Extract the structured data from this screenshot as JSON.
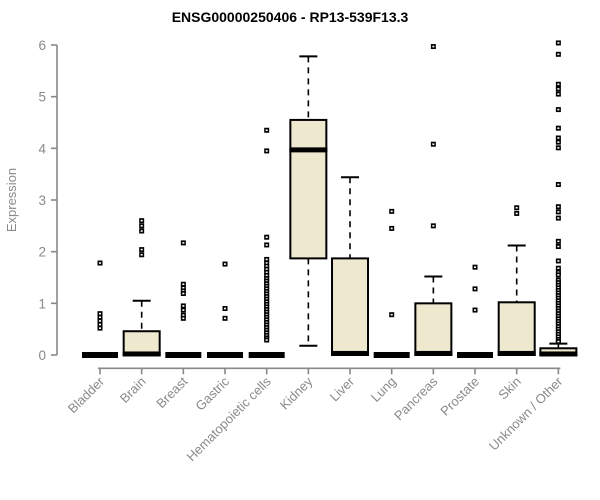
{
  "chart_data": {
    "type": "boxplot",
    "title": "ENSG00000250406 - RP13-539F13.3",
    "ylabel": "Expression",
    "xlabel": "",
    "ylim": [
      0,
      6
    ],
    "yticks": [
      0,
      1,
      2,
      3,
      4,
      5,
      6
    ],
    "grid": false,
    "legend": "none",
    "colors": {
      "box_fill": "#ede8ce",
      "box_stroke": "#000000",
      "median": "#000000",
      "whisker": "#000000",
      "outlier": "#000000",
      "axis": "#888888",
      "tick_label": "#8a8a8a",
      "title": "#000000",
      "background": "#ffffff"
    },
    "categories": [
      "Bladder",
      "Brain",
      "Breast",
      "Gastric",
      "Hematopoietic cells",
      "Kidney",
      "Liver",
      "Lung",
      "Pancreas",
      "Prostate",
      "Skin",
      "Unknown / Other"
    ],
    "series": [
      {
        "name": "Bladder",
        "q1": 0,
        "median": 0,
        "q3": 0,
        "whisker_low": 0,
        "whisker_high": 0,
        "outliers": [
          1.78,
          0.8,
          0.73,
          0.66,
          0.59,
          0.52
        ]
      },
      {
        "name": "Brain",
        "q1": 0,
        "median": 0.02,
        "q3": 0.46,
        "whisker_low": 0,
        "whisker_high": 1.05,
        "outliers": [
          2.6,
          2.5,
          2.4,
          2.04,
          1.94
        ]
      },
      {
        "name": "Breast",
        "q1": 0,
        "median": 0,
        "q3": 0,
        "whisker_low": 0,
        "whisker_high": 0,
        "outliers": [
          2.17,
          1.37,
          1.3,
          1.24,
          1.19,
          0.95,
          0.87,
          0.77,
          0.71
        ]
      },
      {
        "name": "Gastric",
        "q1": 0,
        "median": 0,
        "q3": 0,
        "whisker_low": 0,
        "whisker_high": 0,
        "outliers": [
          1.76,
          0.9,
          0.71
        ]
      },
      {
        "name": "Hematopoietic cells",
        "q1": 0,
        "median": 0,
        "q3": 0,
        "whisker_low": 0,
        "whisker_high": 0,
        "outliers": [
          4.35,
          3.95,
          2.28,
          2.13,
          1.85,
          1.78,
          1.72,
          1.66,
          1.6,
          1.54,
          1.48,
          1.43,
          1.38,
          1.33,
          1.28,
          1.23,
          1.18,
          1.13,
          1.08,
          1.03,
          0.98,
          0.93,
          0.88,
          0.83,
          0.78,
          0.73,
          0.68,
          0.63,
          0.58,
          0.53,
          0.48,
          0.43,
          0.38,
          0.33,
          0.29
        ]
      },
      {
        "name": "Kidney",
        "q1": 1.87,
        "median": 3.97,
        "q3": 4.55,
        "whisker_low": 0.18,
        "whisker_high": 5.78,
        "outliers": []
      },
      {
        "name": "Liver",
        "q1": 0,
        "median": 0.03,
        "q3": 1.87,
        "whisker_low": 0,
        "whisker_high": 3.44,
        "outliers": []
      },
      {
        "name": "Lung",
        "q1": 0,
        "median": 0,
        "q3": 0,
        "whisker_low": 0,
        "whisker_high": 0,
        "outliers": [
          2.78,
          2.45,
          0.78
        ]
      },
      {
        "name": "Pancreas",
        "q1": 0,
        "median": 0.03,
        "q3": 1.0,
        "whisker_low": 0,
        "whisker_high": 1.52,
        "outliers": [
          5.97,
          4.08,
          2.5
        ]
      },
      {
        "name": "Prostate",
        "q1": 0,
        "median": 0,
        "q3": 0,
        "whisker_low": 0,
        "whisker_high": 0,
        "outliers": [
          1.7,
          1.28,
          0.87
        ]
      },
      {
        "name": "Skin",
        "q1": 0,
        "median": 0.03,
        "q3": 1.02,
        "whisker_low": 0,
        "whisker_high": 2.12,
        "outliers": [
          2.85,
          2.74
        ]
      },
      {
        "name": "Unknown / Other",
        "q1": 0,
        "median": 0.02,
        "q3": 0.13,
        "whisker_low": 0,
        "whisker_high": 0.22,
        "outliers": [
          6.04,
          5.82,
          5.24,
          5.15,
          5.05,
          4.75,
          4.39,
          4.2,
          4.12,
          4.01,
          3.3,
          2.87,
          2.77,
          2.65,
          2.2,
          2.1,
          1.82,
          1.68,
          1.6,
          1.55,
          1.45,
          1.4,
          1.35,
          1.3,
          1.25,
          1.2,
          1.15,
          1.1,
          1.05,
          1.0,
          0.95,
          0.9,
          0.85,
          0.8,
          0.75,
          0.7,
          0.65,
          0.6,
          0.55,
          0.5,
          0.45,
          0.4,
          0.35,
          0.3,
          0.26
        ]
      }
    ]
  }
}
